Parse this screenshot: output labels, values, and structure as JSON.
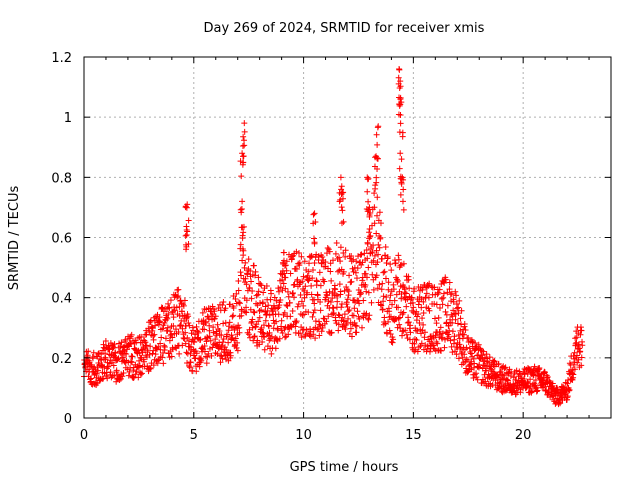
{
  "chart_data": {
    "type": "scatter",
    "title": "Day 269 of 2024, SRMTID for receiver xmis",
    "xlabel": "GPS time / hours",
    "ylabel": "SRMTID / TECUs",
    "xlim": [
      0,
      24
    ],
    "ylim": [
      0,
      1.2
    ],
    "grid": true,
    "marker": "+",
    "color": "#ff0000",
    "x_ticks": [
      0,
      5,
      10,
      15,
      20
    ],
    "x_tick_labels": [
      "0",
      "5",
      "10",
      "15",
      "20"
    ],
    "y_ticks": [
      0,
      0.2,
      0.4,
      0.6,
      0.8,
      1.0,
      1.2
    ],
    "y_tick_labels": [
      "0",
      "0.2",
      "0.4",
      "0.6",
      "0.8",
      "1",
      "1.2"
    ],
    "envelope": {
      "description": "approximate median trend of the scattered SRMTID samples (hours, TECU)",
      "x": [
        0,
        0.5,
        1,
        1.5,
        2,
        2.5,
        3,
        3.5,
        4,
        4.4,
        4.8,
        5,
        5.5,
        6,
        6.5,
        7,
        7.2,
        7.5,
        8,
        8.5,
        9,
        9.5,
        10,
        10.5,
        11,
        11.5,
        12,
        12.5,
        13,
        13.3,
        13.6,
        14,
        14.4,
        14.8,
        15,
        15.5,
        16,
        16.5,
        17,
        17.5,
        18,
        18.5,
        19,
        19.5,
        20,
        20.5,
        21,
        21.5,
        22,
        22.3,
        22.7
      ],
      "y": [
        0.17,
        0.16,
        0.19,
        0.18,
        0.21,
        0.2,
        0.24,
        0.27,
        0.3,
        0.33,
        0.26,
        0.22,
        0.27,
        0.28,
        0.29,
        0.31,
        0.5,
        0.4,
        0.35,
        0.32,
        0.38,
        0.42,
        0.41,
        0.4,
        0.42,
        0.44,
        0.41,
        0.4,
        0.5,
        0.6,
        0.45,
        0.38,
        0.42,
        0.35,
        0.32,
        0.34,
        0.33,
        0.35,
        0.32,
        0.2,
        0.18,
        0.15,
        0.13,
        0.12,
        0.12,
        0.13,
        0.12,
        0.07,
        0.09,
        0.2,
        0.28
      ]
    },
    "peaks": [
      {
        "x": 4.7,
        "y": 0.71
      },
      {
        "x": 4.7,
        "y": 0.62
      },
      {
        "x": 7.3,
        "y": 0.98
      },
      {
        "x": 7.2,
        "y": 0.88
      },
      {
        "x": 7.2,
        "y": 0.72
      },
      {
        "x": 11.7,
        "y": 0.8
      },
      {
        "x": 11.8,
        "y": 0.75
      },
      {
        "x": 12.9,
        "y": 0.8
      },
      {
        "x": 13.3,
        "y": 0.87
      },
      {
        "x": 13.4,
        "y": 0.97
      },
      {
        "x": 14.35,
        "y": 1.16
      },
      {
        "x": 14.4,
        "y": 1.12
      },
      {
        "x": 14.45,
        "y": 1.05
      },
      {
        "x": 14.4,
        "y": 0.88
      },
      {
        "x": 14.5,
        "y": 0.8
      },
      {
        "x": 9.1,
        "y": 0.55
      },
      {
        "x": 10.5,
        "y": 0.68
      },
      {
        "x": 13.0,
        "y": 0.7
      }
    ]
  }
}
